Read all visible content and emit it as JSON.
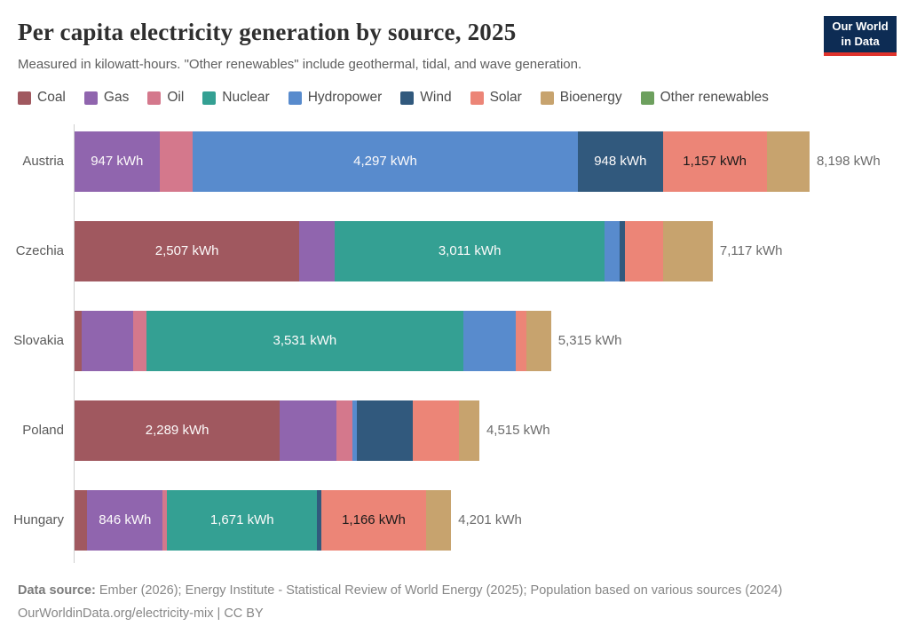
{
  "header": {
    "title": "Per capita electricity generation by source, 2025",
    "subtitle": "Measured in kilowatt-hours. \"Other renewables\" include geothermal, tidal, and wave generation."
  },
  "logo": {
    "line1": "Our World",
    "line2": "in Data",
    "bg_color": "#0d2c54",
    "accent_color": "#e0332c"
  },
  "legend": {
    "items": [
      {
        "label": "Coal",
        "color": "#a0585f"
      },
      {
        "label": "Gas",
        "color": "#9065ae"
      },
      {
        "label": "Oil",
        "color": "#d4788c"
      },
      {
        "label": "Nuclear",
        "color": "#34a093"
      },
      {
        "label": "Hydropower",
        "color": "#588bcd"
      },
      {
        "label": "Wind",
        "color": "#31597d"
      },
      {
        "label": "Solar",
        "color": "#ec8577"
      },
      {
        "label": "Bioenergy",
        "color": "#c7a36e"
      },
      {
        "label": "Other renewables",
        "color": "#6da05e"
      }
    ]
  },
  "chart_data": {
    "type": "bar",
    "stacked": true,
    "orientation": "horizontal",
    "unit": "kWh",
    "title": "Per capita electricity generation by source, 2025",
    "categories": [
      "Austria",
      "Czechia",
      "Slovakia",
      "Poland",
      "Hungary"
    ],
    "series_order": [
      "Coal",
      "Gas",
      "Oil",
      "Nuclear",
      "Hydropower",
      "Wind",
      "Solar",
      "Bioenergy",
      "Other renewables"
    ],
    "totals": [
      8198,
      7117,
      5315,
      4515,
      4201
    ],
    "xlim": [
      0,
      8198
    ],
    "grid": false,
    "legend_position": "top",
    "rows": [
      {
        "country": "Austria",
        "total": 8198,
        "total_label": "8,198 kWh",
        "segments": [
          {
            "source": "Gas",
            "value": 947,
            "label": "947 kWh",
            "label_dark": false
          },
          {
            "source": "Oil",
            "value": 370,
            "label": null
          },
          {
            "source": "Hydropower",
            "value": 4297,
            "label": "4,297 kWh",
            "label_dark": false
          },
          {
            "source": "Wind",
            "value": 948,
            "label": "948 kWh",
            "label_dark": false
          },
          {
            "source": "Solar",
            "value": 1157,
            "label": "1,157 kWh",
            "label_dark": true
          },
          {
            "source": "Bioenergy",
            "value": 479,
            "label": null
          }
        ]
      },
      {
        "country": "Czechia",
        "total": 7117,
        "total_label": "7,117 kWh",
        "segments": [
          {
            "source": "Coal",
            "value": 2507,
            "label": "2,507 kWh",
            "label_dark": false
          },
          {
            "source": "Gas",
            "value": 395,
            "label": null
          },
          {
            "source": "Nuclear",
            "value": 3011,
            "label": "3,011 kWh",
            "label_dark": false
          },
          {
            "source": "Hydropower",
            "value": 168,
            "label": null
          },
          {
            "source": "Wind",
            "value": 59,
            "label": null
          },
          {
            "source": "Solar",
            "value": 425,
            "label": null
          },
          {
            "source": "Bioenergy",
            "value": 552,
            "label": null
          }
        ]
      },
      {
        "country": "Slovakia",
        "total": 5315,
        "total_label": "5,315 kWh",
        "segments": [
          {
            "source": "Coal",
            "value": 80,
            "label": null
          },
          {
            "source": "Gas",
            "value": 575,
            "label": null
          },
          {
            "source": "Oil",
            "value": 148,
            "label": null
          },
          {
            "source": "Nuclear",
            "value": 3531,
            "label": "3,531 kWh",
            "label_dark": false
          },
          {
            "source": "Hydropower",
            "value": 585,
            "label": null
          },
          {
            "source": "Solar",
            "value": 120,
            "label": null
          },
          {
            "source": "Bioenergy",
            "value": 276,
            "label": null
          }
        ]
      },
      {
        "country": "Poland",
        "total": 4515,
        "total_label": "4,515 kWh",
        "segments": [
          {
            "source": "Coal",
            "value": 2289,
            "label": "2,289 kWh",
            "label_dark": false
          },
          {
            "source": "Gas",
            "value": 630,
            "label": null
          },
          {
            "source": "Oil",
            "value": 180,
            "label": null
          },
          {
            "source": "Hydropower",
            "value": 52,
            "label": null
          },
          {
            "source": "Wind",
            "value": 626,
            "label": null
          },
          {
            "source": "Solar",
            "value": 507,
            "label": null
          },
          {
            "source": "Bioenergy",
            "value": 231,
            "label": null
          }
        ]
      },
      {
        "country": "Hungary",
        "total": 4201,
        "total_label": "4,201 kWh",
        "segments": [
          {
            "source": "Coal",
            "value": 140,
            "label": null
          },
          {
            "source": "Gas",
            "value": 846,
            "label": "846 kWh",
            "label_dark": false
          },
          {
            "source": "Oil",
            "value": 49,
            "label": null
          },
          {
            "source": "Nuclear",
            "value": 1671,
            "label": "1,671 kWh",
            "label_dark": false
          },
          {
            "source": "Wind",
            "value": 49,
            "label": null
          },
          {
            "source": "Solar",
            "value": 1166,
            "label": "1,166 kWh",
            "label_dark": true
          },
          {
            "source": "Bioenergy",
            "value": 280,
            "label": null
          }
        ]
      }
    ]
  },
  "footer": {
    "source_label": "Data source:",
    "sources": " Ember (2026); Energy Institute - Statistical Review of World Energy (2025); Population based on various sources (2024)",
    "link_line": "OurWorldinData.org/electricity-mix | CC BY"
  }
}
